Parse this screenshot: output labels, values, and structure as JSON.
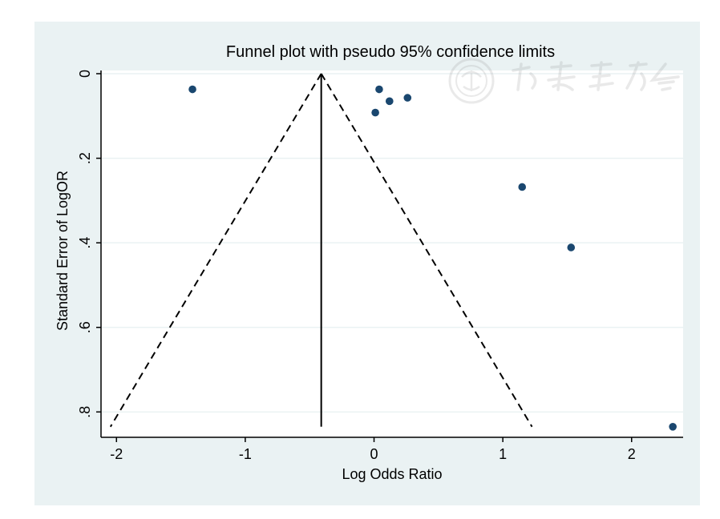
{
  "chart_data": {
    "type": "scatter",
    "title": "Funnel plot with pseudo 95% confidence limits",
    "xlabel": "Log Odds Ratio",
    "ylabel": "Standard Error of LogOR",
    "x_ticks": [
      {
        "value": -2,
        "label": "-2"
      },
      {
        "value": -1,
        "label": "-1"
      },
      {
        "value": 0,
        "label": "0"
      },
      {
        "value": 1,
        "label": "1"
      },
      {
        "value": 2,
        "label": "2"
      }
    ],
    "y_ticks": [
      {
        "value": 0,
        "label": "0"
      },
      {
        "value": 0.2,
        "label": ".2"
      },
      {
        "value": 0.4,
        "label": ".4"
      },
      {
        "value": 0.6,
        "label": ".6"
      },
      {
        "value": 0.8,
        "label": ".8"
      }
    ],
    "xlim": [
      -2.12,
      2.4
    ],
    "ylim": [
      0,
      0.86
    ],
    "y_reversed": true,
    "grid": true,
    "points": [
      {
        "x": -1.41,
        "y": 0.037
      },
      {
        "x": 0.04,
        "y": 0.037
      },
      {
        "x": 0.12,
        "y": 0.065
      },
      {
        "x": 0.26,
        "y": 0.057
      },
      {
        "x": 0.01,
        "y": 0.092
      },
      {
        "x": 1.15,
        "y": 0.268
      },
      {
        "x": 1.53,
        "y": 0.411
      },
      {
        "x": 2.32,
        "y": 0.835
      }
    ],
    "pooled_estimate": -0.41,
    "ci_multiplier": 1.96,
    "se_max": 0.835,
    "colors": {
      "background": "#eaf2f3",
      "plot_area": "#ffffff",
      "grid": "#eaf2f3",
      "marker": "#1a476f",
      "line": "#000000"
    }
  }
}
